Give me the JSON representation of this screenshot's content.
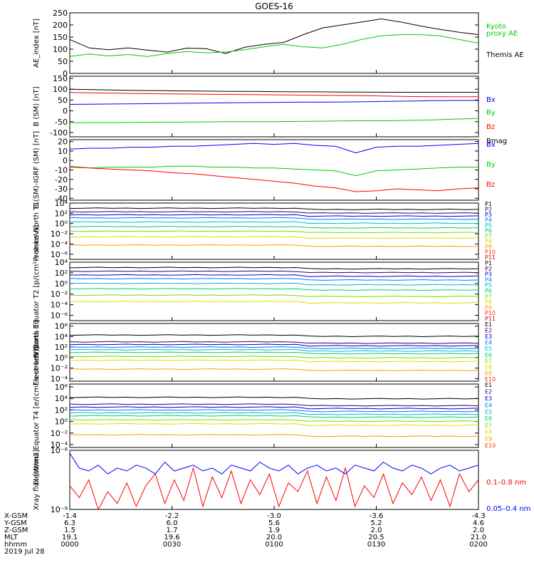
{
  "title": "GOES-16",
  "colors": {
    "black": "#000000",
    "green": "#00cc00",
    "blue": "#0000ff",
    "red": "#ff0000",
    "channels": [
      "#000000",
      "#330066",
      "#0000cc",
      "#0077ff",
      "#00bbcc",
      "#00cc77",
      "#77dd00",
      "#dddd00",
      "#ff9900",
      "#ff3300",
      "#cc0000"
    ]
  },
  "chart_data": [
    {
      "id": "ae",
      "type": "line",
      "ylabel": "AE_index [nT]",
      "ylim": [
        0,
        250
      ],
      "yticks": [
        "0",
        "50",
        "100",
        "150",
        "200",
        "250"
      ],
      "legend": [
        {
          "text": "Kyoto",
          "color": "#00cc00"
        },
        {
          "text": "proxy AE",
          "color": "#00cc00"
        },
        {
          "text": "Themis AE",
          "color": "#000000"
        }
      ],
      "series": [
        {
          "name": "Themis AE",
          "color": "#000000",
          "values": [
            140,
            105,
            98,
            105,
            96,
            88,
            104,
            102,
            82,
            108,
            120,
            128,
            160,
            188,
            200,
            212,
            225,
            212,
            196,
            182,
            170,
            160
          ]
        },
        {
          "name": "Kyoto proxy AE",
          "color": "#00cc00",
          "values": [
            70,
            80,
            72,
            78,
            70,
            82,
            90,
            85,
            88,
            98,
            110,
            120,
            110,
            105,
            120,
            140,
            155,
            160,
            160,
            155,
            140,
            125
          ]
        }
      ]
    },
    {
      "id": "bsm",
      "type": "line",
      "ylabel": "B (SM) [nT]",
      "ylim": [
        -120,
        160
      ],
      "yticks": [
        "-100",
        "-50",
        "0",
        "50",
        "100",
        "150"
      ],
      "legend": [
        {
          "text": "Bx",
          "color": "#0000ff"
        },
        {
          "text": "By",
          "color": "#00cc00"
        },
        {
          "text": "Bz",
          "color": "#ff0000"
        },
        {
          "text": "Bmag",
          "color": "#000000"
        }
      ],
      "series": [
        {
          "name": "Bmag",
          "color": "#000000",
          "values": [
            100,
            98,
            96,
            94,
            93,
            92,
            91,
            90,
            90,
            89,
            88,
            88,
            87,
            87,
            86,
            86,
            86,
            86,
            86
          ]
        },
        {
          "name": "Bz",
          "color": "#ff0000",
          "values": [
            85,
            83,
            82,
            80,
            79,
            78,
            77,
            76,
            75,
            74,
            73,
            72,
            71,
            70,
            68,
            66,
            65,
            65,
            65
          ]
        },
        {
          "name": "Bx",
          "color": "#0000ff",
          "values": [
            30,
            31,
            32,
            33,
            34,
            35,
            36,
            37,
            38,
            39,
            40,
            40,
            41,
            42,
            44,
            45,
            47,
            48,
            48
          ]
        },
        {
          "name": "By",
          "color": "#00cc00",
          "values": [
            -55,
            -54,
            -54,
            -53,
            -52,
            -52,
            -51,
            -50,
            -50,
            -50,
            -49,
            -48,
            -47,
            -46,
            -46,
            -44,
            -42,
            -38,
            -35
          ]
        }
      ]
    },
    {
      "id": "bdiff",
      "type": "line",
      "ylabel": "B (SM)-IGRF (SM) [nT]",
      "ylim": [
        -42,
        22
      ],
      "yticks": [
        "-40",
        "-30",
        "-20",
        "-10",
        "0",
        "10",
        "20"
      ],
      "legend": [
        {
          "text": "Bx",
          "color": "#0000ff"
        },
        {
          "text": "By",
          "color": "#00cc00"
        },
        {
          "text": "Bz",
          "color": "#ff0000"
        }
      ],
      "series": [
        {
          "name": "Bx",
          "color": "#0000ff",
          "values": [
            12,
            13,
            13,
            14,
            14,
            15,
            15,
            16,
            17,
            18,
            17,
            18,
            16,
            15,
            8,
            14,
            15,
            15,
            16,
            17,
            18
          ]
        },
        {
          "name": "By",
          "color": "#00cc00",
          "values": [
            -6,
            -8,
            -7,
            -7,
            -7,
            -6,
            -6,
            -7,
            -7,
            -8,
            -8,
            -9,
            -10,
            -11,
            -16,
            -11,
            -10,
            -9,
            -8,
            -7,
            -7
          ]
        },
        {
          "name": "Bz",
          "color": "#ff0000",
          "values": [
            -7,
            -8,
            -9,
            -10,
            -11,
            -13,
            -14,
            -16,
            -18,
            -20,
            -22,
            -24,
            -27,
            -29,
            -33,
            -32,
            -30,
            -31,
            -32,
            -30,
            -29
          ]
        }
      ]
    },
    {
      "id": "prot1",
      "type": "line",
      "ylabel": "Protons North T1",
      "log": true,
      "ylim": [
        -7,
        4
      ],
      "yticks": [
        "10⁴",
        "10²",
        "10⁰",
        "10⁻²",
        "10⁻⁴",
        "10⁻⁶"
      ],
      "ytick_exp": [
        4,
        2,
        0,
        -2,
        -4,
        -6
      ],
      "legend": [
        "P1",
        "P2",
        "P3",
        "P4",
        "P5",
        "P6",
        "P7",
        "P8",
        "P9",
        "P10",
        "P11"
      ],
      "series_log10_levels": [
        3.0,
        2.3,
        1.7,
        1.1,
        0.3,
        -0.6,
        -1.5,
        -2.6,
        -4.2
      ]
    },
    {
      "id": "prot2",
      "type": "line",
      "ylabel": "Protons Equator T2 [p/(cm²-s-sr-keV)]",
      "log": true,
      "ylim": [
        -7,
        4
      ],
      "yticks": [
        "10⁴",
        "10²",
        "10⁰",
        "10⁻²",
        "10⁻⁴",
        "10⁻⁶"
      ],
      "ytick_exp": [
        4,
        2,
        0,
        -2,
        -4,
        -6
      ],
      "legend": [
        "P1",
        "P2",
        "P3",
        "P4",
        "P5",
        "P6",
        "P7",
        "P8",
        "P9",
        "P10",
        "P11"
      ],
      "series_log10_levels": [
        3.0,
        2.3,
        1.6,
        0.9,
        0.0,
        -1.0,
        -2.2,
        -3.4
      ]
    },
    {
      "id": "elec3",
      "type": "line",
      "ylabel": "Electrons North T3",
      "log": true,
      "ylim": [
        -4.5,
        6.5
      ],
      "yticks": [
        "10⁶",
        "10⁴",
        "10²",
        "10⁰",
        "10⁻²",
        "10⁻⁴"
      ],
      "ytick_exp": [
        6,
        4,
        2,
        0,
        -2,
        -4
      ],
      "legend": [
        "E1",
        "E2",
        "E3",
        "E4",
        "E5",
        "E6",
        "E7",
        "E8",
        "E9",
        "E10"
      ],
      "series_log10_levels": [
        4.3,
        3.0,
        2.5,
        2.0,
        1.5,
        1.0,
        0.2,
        -0.5,
        -2.2
      ]
    },
    {
      "id": "elec4",
      "type": "line",
      "ylabel": "Electrons Equator T4 [e/(cm²-s-sr-keV)]",
      "log": true,
      "ylim": [
        -4.5,
        6.5
      ],
      "yticks": [
        "10⁶",
        "10⁴",
        "10²",
        "10⁰",
        "10⁻²",
        "10⁻⁴"
      ],
      "ytick_exp": [
        6,
        4,
        2,
        0,
        -2,
        -4
      ],
      "legend": [
        "E1",
        "E2",
        "E3",
        "E4",
        "E5",
        "E6",
        "E7",
        "E8",
        "E9",
        "E10"
      ],
      "series_log10_levels": [
        4.2,
        3.0,
        2.5,
        2.0,
        1.5,
        1.0,
        0.3,
        -0.4,
        -2.3
      ]
    },
    {
      "id": "xray",
      "type": "line",
      "ylabel": "Xray flux [W/m2]",
      "log": true,
      "ylim": [
        -9,
        -8
      ],
      "yticks": [
        "10⁻⁸",
        "10⁻⁹"
      ],
      "ytick_exp": [
        -8,
        -9
      ],
      "legend": [
        {
          "text": "0.1–0.8 nm",
          "color": "#ff0000"
        },
        {
          "text": "0.05–0.4 nm",
          "color": "#0000ff"
        }
      ],
      "series": [
        {
          "name": "0.1-0.8 nm",
          "color": "#ff0000",
          "values": [
            -8.6,
            -8.8,
            -8.5,
            -9.0,
            -8.7,
            -8.9,
            -8.55,
            -8.95,
            -8.6,
            -8.4,
            -8.9,
            -8.5,
            -8.85,
            -8.3,
            -8.95,
            -8.45,
            -8.8,
            -8.35,
            -8.9,
            -8.5,
            -8.75,
            -8.4,
            -8.95,
            -8.55,
            -8.7,
            -8.35,
            -8.9,
            -8.45,
            -8.85,
            -8.3,
            -8.95,
            -8.6,
            -8.8,
            -8.4,
            -8.9,
            -8.55,
            -8.75,
            -8.45,
            -8.85,
            -8.5,
            -8.95,
            -8.4,
            -8.7,
            -8.5
          ]
        },
        {
          "name": "0.05-0.4 nm",
          "color": "#0000ff",
          "values": [
            -8.05,
            -8.3,
            -8.35,
            -8.25,
            -8.4,
            -8.3,
            -8.35,
            -8.25,
            -8.3,
            -8.4,
            -8.2,
            -8.35,
            -8.3,
            -8.25,
            -8.35,
            -8.3,
            -8.4,
            -8.25,
            -8.3,
            -8.35,
            -8.2,
            -8.3,
            -8.35,
            -8.25,
            -8.4,
            -8.3,
            -8.25,
            -8.35,
            -8.3,
            -8.4,
            -8.25,
            -8.3,
            -8.35,
            -8.2,
            -8.3,
            -8.35,
            -8.25,
            -8.3,
            -8.4,
            -8.3,
            -8.25,
            -8.35,
            -8.3,
            -8.25
          ]
        }
      ]
    }
  ],
  "xaxis": {
    "rows": [
      {
        "label": "X-GSM",
        "values": [
          "-1.4",
          "-2.2",
          "-3.0",
          "-3.6",
          "-4.3"
        ]
      },
      {
        "label": "Y-GSM",
        "values": [
          "6.3",
          "6.0",
          "5.6",
          "5.2",
          "4.6"
        ]
      },
      {
        "label": "Z-GSM",
        "values": [
          "1.5",
          "1.7",
          "1.9",
          "2.0",
          "2.0"
        ]
      },
      {
        "label": "MLT",
        "values": [
          "19.1",
          "19.6",
          "20.0",
          "20.5",
          "21.0"
        ]
      },
      {
        "label": "hhmm",
        "values": [
          "0000",
          "0030",
          "0100",
          "0130",
          "0200"
        ]
      }
    ],
    "date": "2019 Jul 28"
  }
}
